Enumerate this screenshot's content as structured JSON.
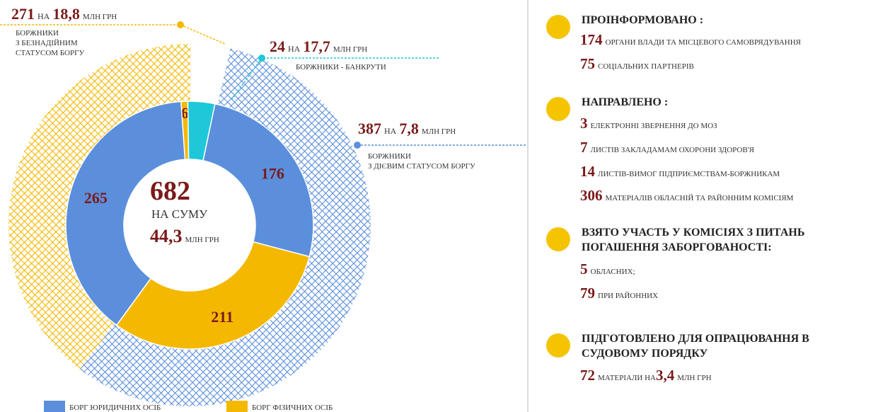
{
  "chart_data": {
    "type": "donut",
    "inner": {
      "values": [
        6,
        24,
        176,
        211,
        265
      ],
      "value_labels": [
        "6",
        null,
        "176",
        "211",
        "265"
      ],
      "colors": [
        "#f5b800",
        "#1ec8d8",
        "#5b8fdc",
        "#f5b800",
        "#5b8fdc"
      ]
    },
    "outer": {
      "values": [
        387,
        271,
        24
      ],
      "colors": [
        "#5b8fdc",
        "#f5b800",
        "#1ec8d8"
      ],
      "hatched": [
        true,
        true,
        false
      ],
      "amounts": [
        "7,8",
        "18,8",
        "17,7"
      ],
      "prep": "НА",
      "unit": "МЛН ГРН",
      "captions": [
        [
          "БОРЖНИКИ",
          "З ДІЄВИМ СТАТУСОМ БОРГУ"
        ],
        [
          "БОРЖНИКИ",
          "З БЕЗНАДІЙНИМ",
          "СТАТУСОМ БОРГУ"
        ],
        [
          "БОРЖНИКИ - БАНКРУТИ"
        ]
      ]
    },
    "center": {
      "total": 682,
      "prep": "НА СУМУ",
      "amount": "44,3",
      "unit": "МЛН ГРН"
    },
    "legend": [
      {
        "name": "БОРГ ЮРИДИЧНИХ ОСІБ",
        "color": "#5b8fdc"
      },
      {
        "name": "БОРГ ФІЗИЧНИХ ОСІБ",
        "color": "#f5b800"
      }
    ]
  },
  "sections": [
    {
      "title": [
        "ПРОІНФОРМОВАНО :"
      ],
      "items": [
        {
          "number": 174,
          "text": "ОРГАНИ ВЛАДИ ТА МІСЦЕВОГО САМОВРЯДУВАННЯ"
        },
        {
          "number": 75,
          "text": "СОЦІАЛЬНИХ ПАРТНЕРІВ"
        }
      ]
    },
    {
      "title": [
        "НАПРАВЛЕНО :"
      ],
      "items": [
        {
          "number": 3,
          "text": "ЕЛЕКТРОННІ ЗВЕРНЕННЯ ДО МОЗ"
        },
        {
          "number": 7,
          "text": "ЛИСТІВ ЗАКЛАДАМАМ ОХОРОНИ ЗДОРОВ'Я"
        },
        {
          "number": 14,
          "text": "ЛИСТІВ-ВИМОГ ПІДПРИЄМСТВАМ-БОРЖНИКАМ"
        },
        {
          "number": 306,
          "text": "МАТЕРІАЛІВ ОБЛАСНІЙ ТА РАЙОННИМ КОМІСІЯМ"
        }
      ]
    },
    {
      "title": [
        "ВЗЯТО УЧАСТЬ У КОМІСІЯХ З ПИТАНЬ",
        "ПОГАШЕННЯ ЗАБОРГОВАНОСТІ:"
      ],
      "items": [
        {
          "number": 5,
          "text": "ОБЛАСНИХ;"
        },
        {
          "number": 79,
          "text": "ПРИ РАЙОННИХ"
        }
      ]
    },
    {
      "title": [
        "ПІДГОТОВЛЕНО ДЛЯ ОПРАЦЮВАННЯ В",
        "СУДОВОМУ ПОРЯДКУ"
      ],
      "items": [
        {
          "number": 72,
          "text": "МАТЕРІАЛИ НА",
          "amount": "3,4",
          "unit": "МЛН ГРН"
        }
      ]
    }
  ]
}
